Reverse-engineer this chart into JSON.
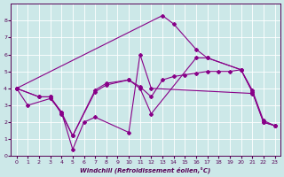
{
  "xlabel": "Windchill (Refroidissement éolien,°C)",
  "bg_color": "#cce8e8",
  "line_color": "#880088",
  "xlim": [
    -0.5,
    23.5
  ],
  "ylim": [
    0,
    9
  ],
  "xticks": [
    0,
    1,
    2,
    3,
    4,
    5,
    6,
    7,
    8,
    9,
    10,
    11,
    12,
    13,
    14,
    15,
    16,
    17,
    18,
    19,
    20,
    21,
    22,
    23
  ],
  "yticks": [
    0,
    1,
    2,
    3,
    4,
    5,
    6,
    7,
    8
  ],
  "line1_x": [
    0,
    1,
    3,
    4,
    5,
    6,
    7,
    10,
    11,
    12,
    21
  ],
  "line1_y": [
    4.0,
    3.0,
    3.4,
    2.6,
    0.4,
    2.0,
    2.3,
    1.4,
    6.0,
    4.0,
    3.7
  ],
  "line2_x": [
    0,
    2,
    3,
    4,
    5,
    7,
    8,
    10,
    11,
    12,
    16,
    17,
    20,
    21,
    22,
    23
  ],
  "line2_y": [
    4.0,
    3.5,
    3.5,
    2.5,
    1.2,
    3.8,
    4.2,
    4.5,
    4.0,
    2.5,
    5.8,
    5.8,
    5.1,
    3.8,
    2.0,
    1.8
  ],
  "line3_x": [
    0,
    13,
    14,
    16,
    17,
    20,
    21,
    22,
    23
  ],
  "line3_y": [
    4.0,
    8.3,
    7.8,
    6.3,
    5.8,
    5.1,
    3.8,
    2.0,
    1.8
  ],
  "line4_x": [
    0,
    2,
    3,
    4,
    5,
    7,
    8,
    10,
    11,
    12,
    13,
    14,
    15,
    16,
    17,
    18,
    19,
    20,
    21,
    22,
    23
  ],
  "line4_y": [
    4.0,
    3.5,
    3.5,
    2.6,
    1.2,
    3.9,
    4.3,
    4.5,
    4.1,
    3.5,
    4.5,
    4.7,
    4.8,
    4.9,
    5.0,
    5.0,
    5.0,
    5.1,
    3.9,
    2.1,
    1.8
  ]
}
